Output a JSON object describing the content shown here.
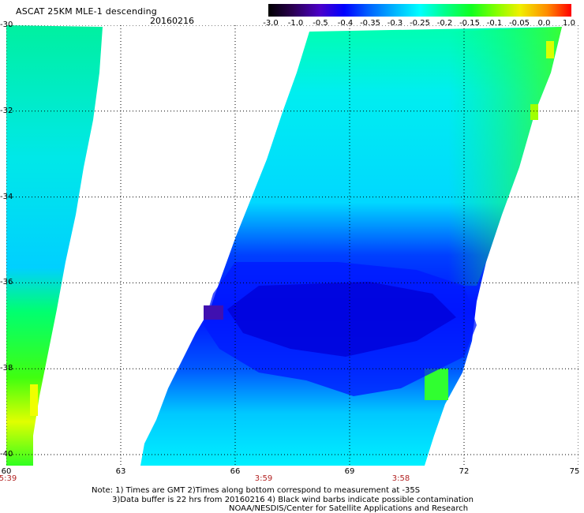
{
  "header": {
    "title": "ASCAT 25KM MLE-1 descending",
    "date": "20160216"
  },
  "colorbar": {
    "labels": [
      "-3.0",
      "-1.0",
      "-0.5",
      "-0.4",
      "-0.35",
      "-0.3",
      "-0.25",
      "-0.2",
      "-0.15",
      "-0.1",
      "-0.05",
      "0.0",
      "1.0"
    ],
    "colors": [
      "#000000",
      "#3a0070",
      "#4b00c8",
      "#0000ff",
      "#0050ff",
      "#00a0ff",
      "#00f0ff",
      "#00ffa0",
      "#00ff30",
      "#80ff00",
      "#e0ff00",
      "#ff8000",
      "#ff0000"
    ]
  },
  "map": {
    "y_ticks": [
      "-30",
      "-32",
      "-34",
      "-36",
      "-38",
      "-40"
    ],
    "x_ticks": [
      "60",
      "63",
      "66",
      "69",
      "72",
      "75"
    ],
    "pass_times": [
      {
        "label": "5:39"
      },
      {
        "label": "3:59"
      },
      {
        "label": "3:58"
      }
    ]
  },
  "notes": {
    "line1": "Note: 1) Times are GMT 2)Times along bottom correspond to measurement at -35S",
    "line2": "3)Data buffer is 22 hrs from 20160216 4) Black wind barbs indicate possible contamination",
    "line3": "NOAA/NESDIS/Center for Satellite Applications and Research"
  }
}
